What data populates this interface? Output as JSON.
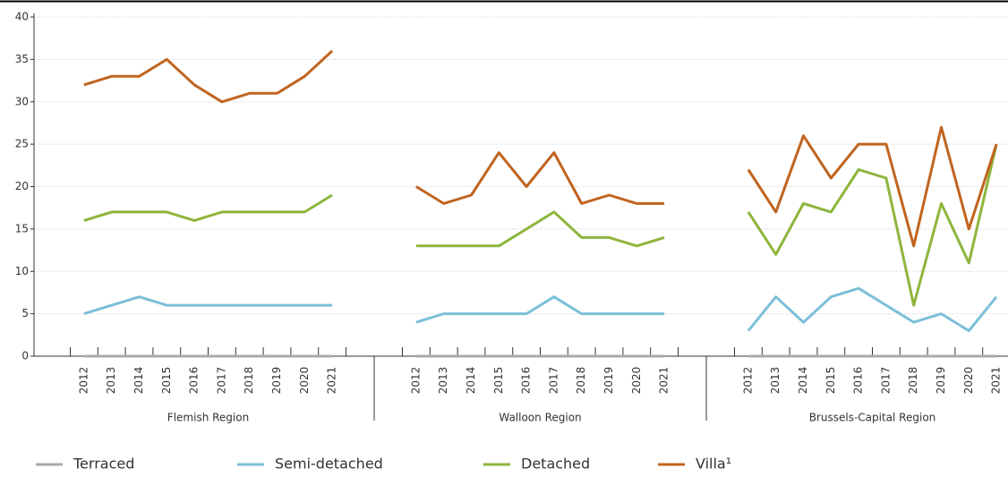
{
  "chart_data": {
    "type": "line",
    "groups": [
      {
        "label": "Flemish Region",
        "categories": [
          "2012",
          "2013",
          "2014",
          "2015",
          "2016",
          "2017",
          "2018",
          "2019",
          "2020",
          "2021"
        ]
      },
      {
        "label": "Walloon Region",
        "categories": [
          "2012",
          "2013",
          "2014",
          "2015",
          "2016",
          "2017",
          "2018",
          "2019",
          "2020",
          "2021"
        ]
      },
      {
        "label": "Brussels-Capital Region",
        "categories": [
          "2012",
          "2013",
          "2014",
          "2015",
          "2016",
          "2017",
          "2018",
          "2019",
          "2020",
          "2021"
        ]
      }
    ],
    "series": [
      {
        "name": "Terraced",
        "color": "#aaaaaa",
        "values": [
          0,
          0,
          0,
          0,
          0,
          0,
          0,
          0,
          0,
          0,
          0,
          0,
          0,
          0,
          0,
          0,
          0,
          0,
          0,
          0,
          0,
          0,
          0,
          0,
          0,
          0,
          0,
          0,
          0,
          0
        ]
      },
      {
        "name": "Semi-detached",
        "color": "#7cbfd9",
        "values": [
          5,
          6,
          7,
          6,
          6,
          6,
          6,
          6,
          6,
          6,
          4,
          5,
          5,
          5,
          5,
          7,
          5,
          5,
          5,
          5,
          3,
          7,
          4,
          7,
          8,
          6,
          4,
          5,
          3,
          7
        ]
      },
      {
        "name": "Detached",
        "color": "#8db53c",
        "values": [
          16,
          17,
          17,
          17,
          16,
          17,
          17,
          17,
          17,
          19,
          13,
          13,
          13,
          13,
          15,
          17,
          14,
          14,
          13,
          14,
          17,
          12,
          18,
          17,
          22,
          21,
          6,
          18,
          11,
          25
        ]
      },
      {
        "name": "Villa¹",
        "color": "#c0641f",
        "values": [
          32,
          33,
          33,
          35,
          32,
          30,
          31,
          31,
          33,
          36,
          20,
          18,
          19,
          24,
          20,
          24,
          18,
          19,
          18,
          18,
          22,
          17,
          26,
          21,
          25,
          25,
          13,
          27,
          15,
          25
        ]
      }
    ],
    "ylim": [
      0,
      40
    ],
    "yticks": [
      0,
      5,
      10,
      15,
      20,
      25,
      30,
      35,
      40
    ],
    "grid": true
  }
}
